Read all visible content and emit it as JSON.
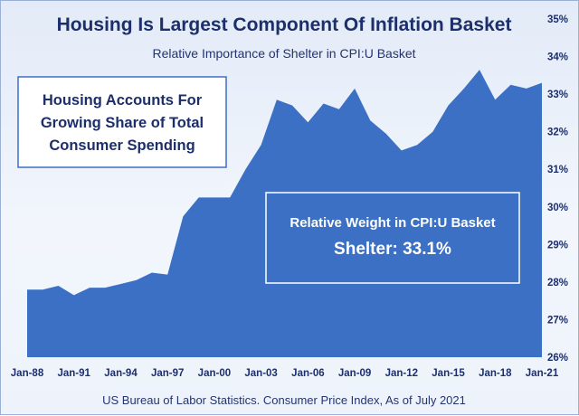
{
  "chart_data": {
    "type": "area",
    "title": "Housing Is Largest Component Of Inflation Basket",
    "subtitle": "Relative Importance of Shelter in CPI:U Basket",
    "source": "US Bureau of Labor Statistics. Consumer Price Index, As of July 2021",
    "x_tick_labels": [
      "Jan-88",
      "Jan-91",
      "Jan-94",
      "Jan-97",
      "Jan-00",
      "Jan-03",
      "Jan-06",
      "Jan-09",
      "Jan-12",
      "Jan-15",
      "Jan-18",
      "Jan-21"
    ],
    "y_tick_labels": [
      "35%",
      "34%",
      "33%",
      "32%",
      "31%",
      "30%",
      "29%",
      "28%",
      "27%",
      "26%"
    ],
    "ylim": [
      26,
      35
    ],
    "xlim": [
      1988,
      2021
    ],
    "grid": false,
    "fill_color": "#3b70c4",
    "series": [
      {
        "x": [
          1988,
          1989,
          1990,
          1991,
          1992,
          1993,
          1994,
          1995,
          1996,
          1997,
          1998,
          1999,
          2000,
          2001,
          2002,
          2003,
          2004,
          2005,
          2006,
          2007,
          2008,
          2009,
          2010,
          2011,
          2012,
          2013,
          2014,
          2015,
          2016,
          2017,
          2018,
          2019,
          2020,
          2021
        ],
        "values": [
          27.8,
          27.8,
          27.9,
          27.65,
          27.85,
          27.85,
          27.95,
          28.05,
          28.25,
          28.2,
          29.75,
          30.25,
          30.25,
          30.25,
          31.0,
          31.65,
          32.85,
          32.7,
          32.25,
          32.75,
          32.6,
          33.15,
          32.3,
          31.95,
          31.5,
          31.65,
          32.0,
          32.7,
          33.15,
          33.65,
          32.85,
          33.25,
          33.15,
          33.3
        ]
      }
    ],
    "annotations": {
      "callout_lines": [
        "Housing Accounts For",
        "Growing Share of Total",
        "Consumer Spending"
      ],
      "weight_label": "Relative Weight in CPI:U Basket",
      "weight_value": "Shelter: 33.1%"
    }
  }
}
